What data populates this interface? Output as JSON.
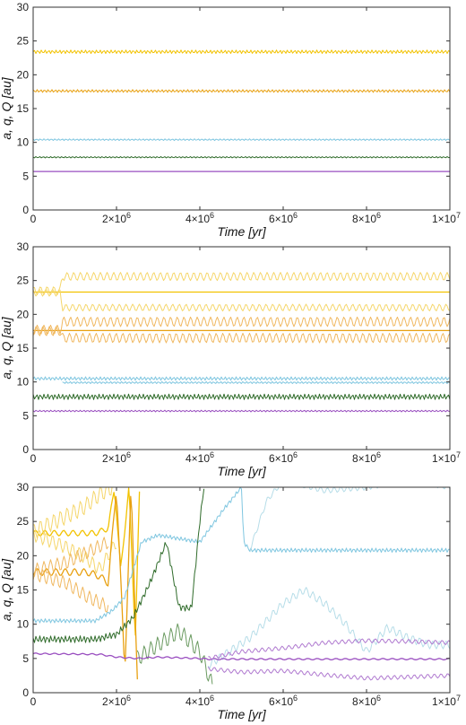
{
  "chart_data": [
    {
      "type": "line",
      "xlabel": "Time [yr]",
      "ylabel": "a, q, Q [au]",
      "xlim": [
        0,
        10000000
      ],
      "ylim": [
        0,
        30
      ],
      "x_ticks": [
        0,
        2000000,
        4000000,
        6000000,
        8000000,
        10000000
      ],
      "x_tick_labels": [
        {
          "base": "0",
          "exp": ""
        },
        {
          "base": "2×10",
          "exp": "6"
        },
        {
          "base": "4×10",
          "exp": "6"
        },
        {
          "base": "6×10",
          "exp": "6"
        },
        {
          "base": "8×10",
          "exp": "6"
        },
        {
          "base": "1×10",
          "exp": "7"
        }
      ],
      "y_ticks": [
        0,
        5,
        10,
        15,
        20,
        25,
        30
      ],
      "y_tick_labels": [
        "0",
        "5",
        "10",
        "15",
        "20",
        "25",
        "30"
      ],
      "series": [
        {
          "color": "#f2c200",
          "style": "noisy",
          "points": [
            [
              0,
              23.4
            ],
            [
              10000000,
              23.4
            ]
          ],
          "amp": 0.25
        },
        {
          "color": "#e8a010",
          "style": "noisy",
          "points": [
            [
              0,
              17.6
            ],
            [
              10000000,
              17.6
            ]
          ],
          "amp": 0.2
        },
        {
          "color": "#7fc6e0",
          "style": "noisy",
          "points": [
            [
              0,
              10.4
            ],
            [
              10000000,
              10.4
            ]
          ],
          "amp": 0.12
        },
        {
          "color": "#2f6b2a",
          "style": "noisy",
          "points": [
            [
              0,
              7.8
            ],
            [
              10000000,
              7.8
            ]
          ],
          "amp": 0.1
        },
        {
          "color": "#9a4fc0",
          "style": "line",
          "points": [
            [
              0,
              5.7
            ],
            [
              10000000,
              5.7
            ]
          ],
          "amp": 0
        }
      ]
    },
    {
      "type": "line",
      "xlabel": "Time [yr]",
      "ylabel": "a, q, Q [au]",
      "xlim": [
        0,
        10000000
      ],
      "ylim": [
        0,
        30
      ],
      "x_ticks": [
        0,
        2000000,
        4000000,
        6000000,
        8000000,
        10000000
      ],
      "x_tick_labels": [
        {
          "base": "0",
          "exp": ""
        },
        {
          "base": "2×10",
          "exp": "6"
        },
        {
          "base": "4×10",
          "exp": "6"
        },
        {
          "base": "6×10",
          "exp": "6"
        },
        {
          "base": "8×10",
          "exp": "6"
        },
        {
          "base": "1×10",
          "exp": "7"
        }
      ],
      "y_ticks": [
        0,
        5,
        10,
        15,
        20,
        25,
        30
      ],
      "y_tick_labels": [
        "0",
        "5",
        "10",
        "15",
        "20",
        "25",
        "30"
      ],
      "series": [
        {
          "color": "#f2c200",
          "style": "line",
          "points": [
            [
              0,
              23.3
            ],
            [
              10000000,
              23.3
            ]
          ],
          "amp": 0
        },
        {
          "color": "#f5d66a",
          "style": "wave",
          "points": [
            [
              0,
              23.5
            ],
            [
              650000,
              23.5
            ],
            [
              700000,
              25.6
            ],
            [
              10000000,
              25.6
            ]
          ],
          "amp": 0.6
        },
        {
          "color": "#f5d66a",
          "style": "wave",
          "points": [
            [
              0,
              23.2
            ],
            [
              650000,
              23.2
            ],
            [
              700000,
              21.0
            ],
            [
              10000000,
              21.0
            ]
          ],
          "amp": 0.5
        },
        {
          "color": "#e8a010",
          "style": "line",
          "points": [
            [
              0,
              17.6
            ],
            [
              10000000,
              17.6
            ]
          ],
          "amp": 0
        },
        {
          "color": "#f0b860",
          "style": "wave",
          "points": [
            [
              0,
              17.7
            ],
            [
              650000,
              17.7
            ],
            [
              700000,
              18.9
            ],
            [
              10000000,
              18.9
            ]
          ],
          "amp": 0.7
        },
        {
          "color": "#f0b860",
          "style": "wave",
          "points": [
            [
              0,
              17.5
            ],
            [
              650000,
              17.5
            ],
            [
              700000,
              16.5
            ],
            [
              10000000,
              16.5
            ]
          ],
          "amp": 0.7
        },
        {
          "color": "#7fc6e0",
          "style": "noisy",
          "points": [
            [
              0,
              10.5
            ],
            [
              10000000,
              10.5
            ]
          ],
          "amp": 0.25
        },
        {
          "color": "#7fc6e0",
          "style": "noisy",
          "points": [
            [
              700000,
              9.9
            ],
            [
              10000000,
              9.9
            ]
          ],
          "amp": 0.15
        },
        {
          "color": "#2f6b2a",
          "style": "noisy",
          "points": [
            [
              0,
              7.8
            ],
            [
              10000000,
              7.8
            ]
          ],
          "amp": 0.4
        },
        {
          "color": "#9a4fc0",
          "style": "noisy",
          "points": [
            [
              0,
              5.7
            ],
            [
              10000000,
              5.7
            ]
          ],
          "amp": 0.12
        }
      ]
    },
    {
      "type": "line",
      "xlabel": "Time [yr]",
      "ylabel": "a, q, Q [au]",
      "xlim": [
        0,
        10000000
      ],
      "ylim": [
        0,
        30
      ],
      "x_ticks": [
        0,
        2000000,
        4000000,
        6000000,
        8000000,
        10000000
      ],
      "x_tick_labels": [
        {
          "base": "0",
          "exp": ""
        },
        {
          "base": "2×10",
          "exp": "6"
        },
        {
          "base": "4×10",
          "exp": "6"
        },
        {
          "base": "6×10",
          "exp": "6"
        },
        {
          "base": "8×10",
          "exp": "6"
        },
        {
          "base": "1×10",
          "exp": "7"
        }
      ],
      "y_ticks": [
        0,
        5,
        10,
        15,
        20,
        25,
        30
      ],
      "y_tick_labels": [
        "0",
        "5",
        "10",
        "15",
        "20",
        "25",
        "30"
      ],
      "series": [
        {
          "color": "#f2c200",
          "style": "line",
          "points": [
            [
              0,
              23.3
            ],
            [
              1500000,
              23.3
            ],
            [
              1800000,
              24
            ],
            [
              1950000,
              30
            ],
            [
              2100000,
              18
            ],
            [
              2300000,
              30
            ],
            [
              2450000,
              8
            ],
            [
              2550000,
              29
            ]
          ],
          "amp": 0.4
        },
        {
          "color": "#f5d66a",
          "style": "wave",
          "points": [
            [
              0,
              23.5
            ],
            [
              700000,
              25.5
            ],
            [
              1200000,
              27
            ],
            [
              1600000,
              29
            ],
            [
              1900000,
              30
            ]
          ],
          "amp": 1.2
        },
        {
          "color": "#f5d66a",
          "style": "wave",
          "points": [
            [
              0,
              23.1
            ],
            [
              700000,
              21.5
            ],
            [
              1200000,
              20
            ],
            [
              1600000,
              18
            ],
            [
              2000000,
              22
            ]
          ],
          "amp": 1.0
        },
        {
          "color": "#e8a010",
          "style": "line",
          "points": [
            [
              0,
              17.6
            ],
            [
              1300000,
              17.6
            ],
            [
              1600000,
              17
            ],
            [
              1800000,
              16
            ],
            [
              2000000,
              30
            ],
            [
              2200000,
              3
            ],
            [
              2350000,
              30
            ],
            [
              2500000,
              2
            ]
          ],
          "amp": 0.5
        },
        {
          "color": "#f0b860",
          "style": "wave",
          "points": [
            [
              0,
              17.8
            ],
            [
              800000,
              19
            ],
            [
              1300000,
              20.5
            ],
            [
              1800000,
              22
            ]
          ],
          "amp": 1.0
        },
        {
          "color": "#f0b860",
          "style": "wave",
          "points": [
            [
              0,
              17.4
            ],
            [
              800000,
              16
            ],
            [
              1300000,
              14
            ],
            [
              1800000,
              12.5
            ]
          ],
          "amp": 1.0
        },
        {
          "color": "#7fc6e0",
          "style": "noisy",
          "points": [
            [
              0,
              10.5
            ],
            [
              1500000,
              10.5
            ],
            [
              1900000,
              12
            ],
            [
              2200000,
              14
            ],
            [
              2600000,
              22
            ],
            [
              3000000,
              23
            ],
            [
              3500000,
              22.5
            ],
            [
              4000000,
              22
            ],
            [
              4600000,
              27
            ],
            [
              5000000,
              30
            ],
            [
              5050000,
              22
            ],
            [
              5200000,
              20.8
            ],
            [
              10000000,
              20.8
            ]
          ],
          "amp": 0.3
        },
        {
          "color": "#b6dde8",
          "style": "wave",
          "points": [
            [
              5200000,
              20.8
            ],
            [
              5600000,
              28
            ],
            [
              6000000,
              31
            ],
            [
              7000000,
              29.5
            ],
            [
              8000000,
              30
            ],
            [
              9000000,
              31
            ],
            [
              10000000,
              30
            ]
          ],
          "amp": 0.4
        },
        {
          "color": "#b6dde8",
          "style": "wave",
          "points": [
            [
              4200000,
              4
            ],
            [
              5200000,
              8
            ],
            [
              6000000,
              13
            ],
            [
              6500000,
              15
            ],
            [
              7000000,
              13
            ],
            [
              7500000,
              10
            ],
            [
              8000000,
              6
            ],
            [
              8500000,
              9.5
            ],
            [
              9000000,
              8
            ],
            [
              9500000,
              7
            ],
            [
              10000000,
              7
            ]
          ],
          "amp": 0.6
        },
        {
          "color": "#2f6b2a",
          "style": "noisy",
          "points": [
            [
              0,
              7.8
            ],
            [
              1500000,
              7.8
            ],
            [
              2000000,
              8.5
            ],
            [
              2400000,
              11
            ],
            [
              2800000,
              16
            ],
            [
              3200000,
              22
            ],
            [
              3500000,
              12.5
            ],
            [
              3800000,
              12.3
            ],
            [
              4000000,
              25
            ],
            [
              4100000,
              30
            ]
          ],
          "amp": 0.5
        },
        {
          "color": "#6a9a60",
          "style": "wave",
          "points": [
            [
              2500000,
              5
            ],
            [
              3000000,
              7
            ],
            [
              3500000,
              9
            ],
            [
              4000000,
              6
            ],
            [
              4300000,
              1
            ]
          ],
          "amp": 1.2
        },
        {
          "color": "#9a4fc0",
          "style": "line",
          "points": [
            [
              0,
              5.7
            ],
            [
              1600000,
              5.6
            ],
            [
              2000000,
              5.2
            ],
            [
              2500000,
              5
            ],
            [
              3000000,
              5.2
            ],
            [
              4000000,
              5
            ],
            [
              4200000,
              4.9
            ],
            [
              10000000,
              4.9
            ]
          ],
          "amp": 0.1
        },
        {
          "color": "#b07ad0",
          "style": "wave",
          "points": [
            [
              4200000,
              5
            ],
            [
              5000000,
              6
            ],
            [
              6000000,
              6.5
            ],
            [
              7000000,
              7.3
            ],
            [
              8000000,
              7.6
            ],
            [
              9000000,
              7.5
            ],
            [
              10000000,
              7.3
            ]
          ],
          "amp": 0.3
        },
        {
          "color": "#b07ad0",
          "style": "wave",
          "points": [
            [
              4200000,
              3.5
            ],
            [
              5000000,
              3
            ],
            [
              6000000,
              3.2
            ],
            [
              7000000,
              2.6
            ],
            [
              8000000,
              2.1
            ],
            [
              9000000,
              2.3
            ],
            [
              10000000,
              2.5
            ]
          ],
          "amp": 0.3
        }
      ]
    }
  ]
}
